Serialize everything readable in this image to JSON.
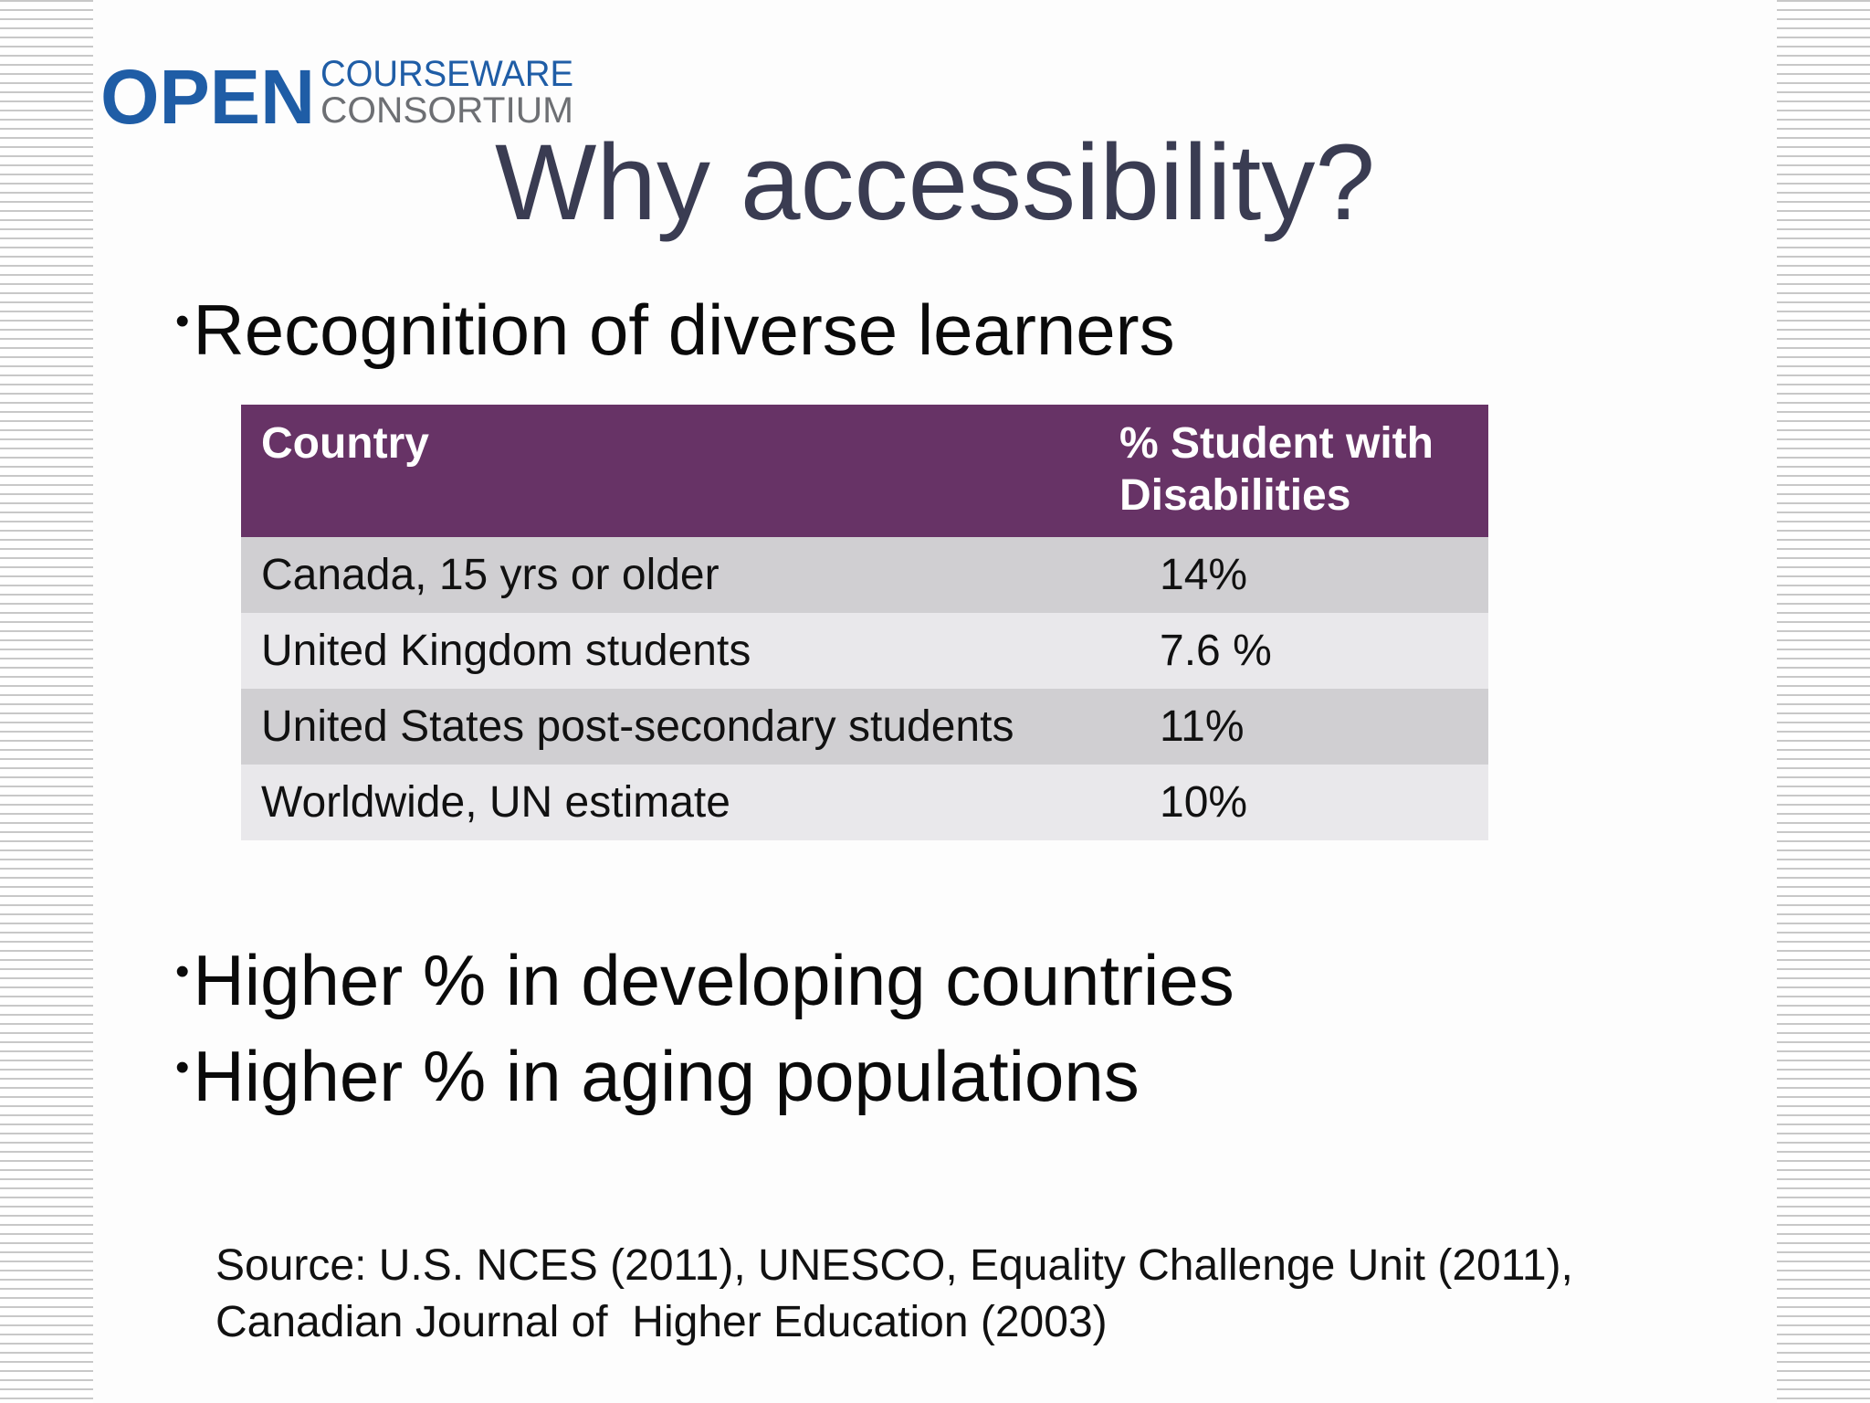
{
  "logo": {
    "open": "OPEN",
    "courseware": "COURSEWARE",
    "consortium": "CONSORTIUM",
    "colors": {
      "open": "#1f5da6",
      "courseware": "#1f5da6",
      "consortium": "#6d6f73"
    }
  },
  "slide": {
    "title": "Why accessibility?",
    "bullet_char": "•",
    "bullets": [
      "Recognition of diverse learners",
      "Higher % in developing countries",
      "Higher % in aging populations"
    ]
  },
  "table": {
    "headers": [
      "Country",
      "% Student with Disabilities"
    ],
    "rows": [
      {
        "country": "Canada, 15 yrs or older",
        "percent": "14%"
      },
      {
        "country": "United Kingdom students",
        "percent": "7.6 %"
      },
      {
        "country": "United States post-secondary students",
        "percent": "11%"
      },
      {
        "country": "Worldwide, UN estimate",
        "percent": "10%"
      }
    ],
    "colors": {
      "header_bg": "#673366",
      "row_odd": "#d0cfd2",
      "row_even": "#e9e8eb"
    }
  },
  "source": {
    "lines": [
      "Source: U.S. NCES (2011), UNESCO, Equality Challenge Unit (2011),",
      "Canadian Journal of  Higher Education (2003)"
    ]
  }
}
